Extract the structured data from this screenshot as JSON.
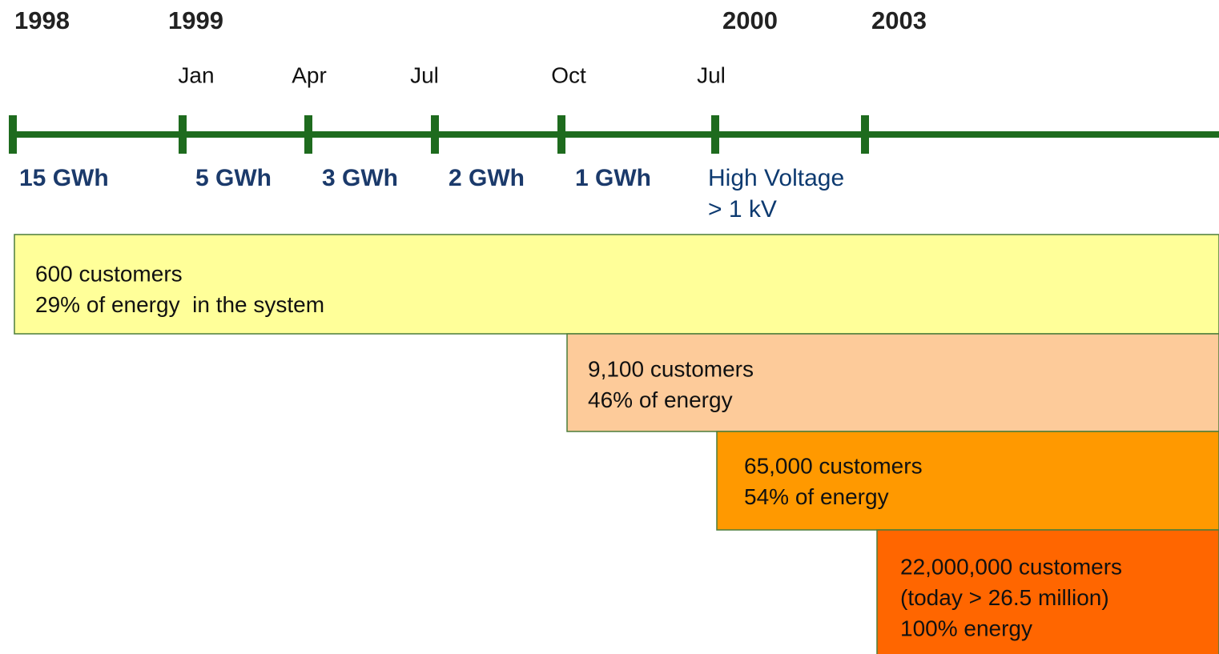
{
  "years": [
    "1998",
    "1999",
    "2000",
    "2003"
  ],
  "months": [
    "Jan",
    "Apr",
    "Jul",
    "Oct",
    "Jul"
  ],
  "thresholds": [
    {
      "lines": [
        "15 GWh"
      ]
    },
    {
      "lines": [
        "5 GWh"
      ]
    },
    {
      "lines": [
        "3 GWh"
      ]
    },
    {
      "lines": [
        "2 GWh"
      ]
    },
    {
      "lines": [
        "1 GWh"
      ]
    },
    {
      "lines": [
        "High Voltage",
        "> 1 kV"
      ]
    }
  ],
  "phases": [
    {
      "lines": [
        "600 customers",
        "29% of energy  in the system"
      ]
    },
    {
      "lines": [
        "9,100 customers",
        "46% of energy"
      ]
    },
    {
      "lines": [
        "65,000 customers",
        "54% of energy"
      ]
    },
    {
      "lines": [
        "22,000,000 customers",
        "(today > 26.5 million)",
        "100% energy"
      ]
    }
  ]
}
